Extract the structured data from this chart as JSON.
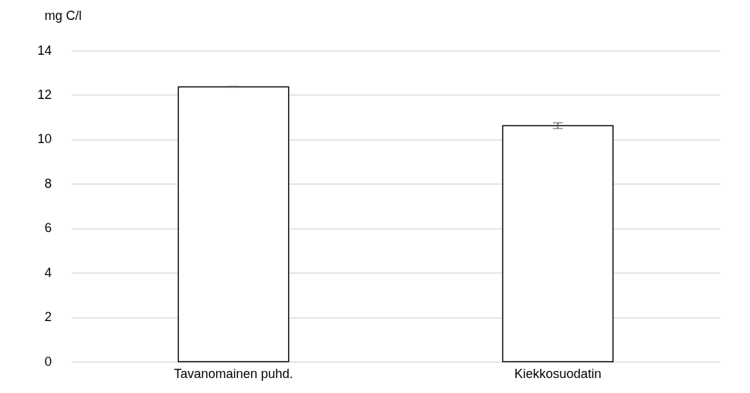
{
  "chart_data": {
    "type": "bar",
    "ylabel": "mg C/l",
    "categories": [
      "Tavanomainen puhd.",
      "Kiekkosuodatin"
    ],
    "series": [
      {
        "color": "#ffffff",
        "values": [
          12.37,
          10.62
        ],
        "errors": [
          0.02,
          0.13
        ]
      }
    ],
    "ylim": [
      0,
      14
    ],
    "yticks": [
      0,
      2,
      4,
      6,
      8,
      10,
      12,
      14
    ],
    "grid": "y"
  }
}
